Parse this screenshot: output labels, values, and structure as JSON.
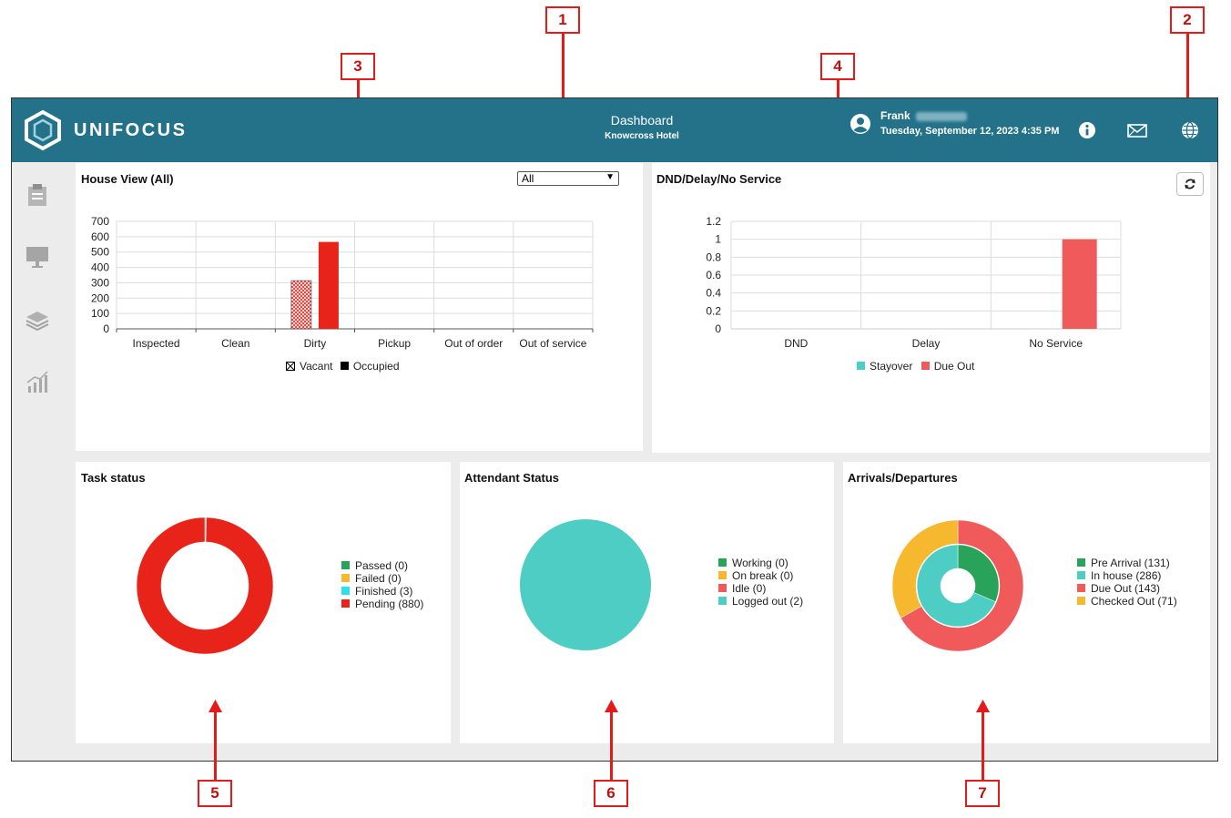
{
  "header": {
    "brand": "UNIFOCUS",
    "page_title": "Dashboard",
    "hotel": "Knowcross Hotel",
    "user_name": "Frank",
    "datetime": "Tuesday, September 12, 2023 4:35 PM",
    "icons": [
      "info-icon",
      "mail-icon",
      "globe-icon"
    ]
  },
  "sidebar": {
    "icons": [
      "clipboard-icon",
      "monitor-icon",
      "layers-icon",
      "analytics-icon"
    ]
  },
  "house_view": {
    "title": "House View (All)",
    "filter_value": "All",
    "chart_data": {
      "type": "bar",
      "categories": [
        "Inspected",
        "Clean",
        "Dirty",
        "Pickup",
        "Out of order",
        "Out of service"
      ],
      "series": [
        {
          "name": "Vacant",
          "values": [
            0,
            0,
            314,
            0,
            0,
            0
          ]
        },
        {
          "name": "Occupied",
          "values": [
            0,
            0,
            566,
            0,
            0,
            0
          ]
        }
      ],
      "yticks": [
        "700",
        "600",
        "500",
        "400",
        "300",
        "200",
        "100",
        "0"
      ],
      "ylim": [
        0,
        700
      ],
      "legend": "bottom",
      "colors": {
        "Vacant": "#e8231a",
        "Occupied": "#e8231a"
      }
    }
  },
  "dnd": {
    "title": "DND/Delay/No Service",
    "chart_data": {
      "type": "bar",
      "categories": [
        "DND",
        "Delay",
        "No Service"
      ],
      "series": [
        {
          "name": "Stayover",
          "values": [
            0,
            0,
            0
          ]
        },
        {
          "name": "Due Out",
          "values": [
            0,
            0,
            1
          ]
        }
      ],
      "yticks": [
        "1.2",
        "1",
        "0.8",
        "0.6",
        "0.4",
        "0.2",
        "0"
      ],
      "ylim": [
        0,
        1.2
      ],
      "legend": "bottom",
      "colors": {
        "Stayover": "#4ecdc4",
        "Due Out": "#f05a5a"
      }
    }
  },
  "task_status": {
    "title": "Task status",
    "legend": [
      {
        "label": "Passed (0)",
        "color": "#2aa35a"
      },
      {
        "label": "Failed (0)",
        "color": "#f5b82e"
      },
      {
        "label": "Finished (3)",
        "color": "#2ee0e8"
      },
      {
        "label": "Pending (880)",
        "color": "#e8231a"
      }
    ],
    "chart_data": {
      "type": "pie",
      "labels": [
        "Passed",
        "Failed",
        "Finished",
        "Pending"
      ],
      "values": [
        0,
        0,
        3,
        880
      ],
      "donut": true
    }
  },
  "attendant_status": {
    "title": "Attendant Status",
    "legend": [
      {
        "label": "Working (0)",
        "color": "#2aa35a"
      },
      {
        "label": "On break (0)",
        "color": "#f5b82e"
      },
      {
        "label": "Idle (0)",
        "color": "#f05a5a"
      },
      {
        "label": "Logged out (2)",
        "color": "#4ecdc4"
      }
    ],
    "chart_data": {
      "type": "pie",
      "labels": [
        "Working",
        "On break",
        "Idle",
        "Logged out"
      ],
      "values": [
        0,
        0,
        0,
        2
      ]
    }
  },
  "arrivals": {
    "title": "Arrivals/Departures",
    "legend": [
      {
        "label": "Pre Arrival (131)",
        "color": "#2aa35a"
      },
      {
        "label": "In house (286)",
        "color": "#4ecdc4"
      },
      {
        "label": "Due Out (143)",
        "color": "#f05a5a"
      },
      {
        "label": "Checked Out (71)",
        "color": "#f5b82e"
      }
    ],
    "chart_data": {
      "type": "pie",
      "rings": [
        {
          "name": "inner",
          "labels": [
            "Pre Arrival",
            "In house"
          ],
          "values": [
            131,
            286
          ]
        },
        {
          "name": "outer",
          "labels": [
            "Due Out",
            "Checked Out"
          ],
          "values": [
            143,
            71
          ]
        }
      ]
    }
  },
  "callouts": [
    "1",
    "2",
    "3",
    "4",
    "5",
    "6",
    "7"
  ]
}
